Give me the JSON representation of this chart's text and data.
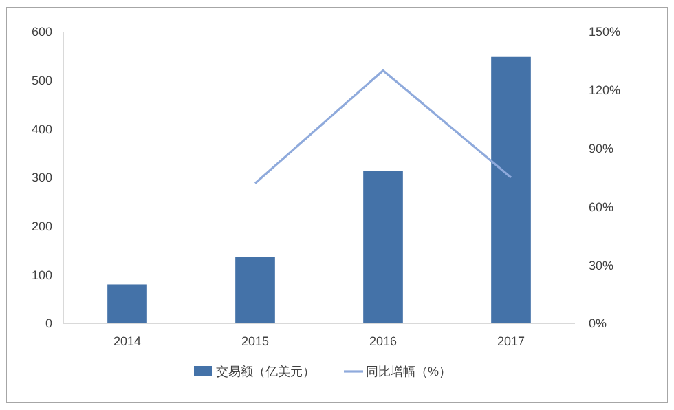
{
  "chart_data": {
    "type": "bar",
    "categories": [
      "2014",
      "2015",
      "2016",
      "2017"
    ],
    "series": [
      {
        "name": "交易额（亿美元）",
        "color": "#4472a8",
        "values": [
          80,
          136,
          314,
          548
        ]
      },
      {
        "name": "同比增幅（%）",
        "type": "line",
        "axis": "y2",
        "color": "#8faadc",
        "values": [
          null,
          72,
          130,
          75
        ]
      }
    ],
    "ylim": [
      0,
      600
    ],
    "yticks": [
      0,
      100,
      200,
      300,
      400,
      500,
      600
    ],
    "y2lim": [
      0,
      150
    ],
    "y2ticks": [
      {
        "value": 0,
        "label": "0%"
      },
      {
        "value": 30,
        "label": "30%"
      },
      {
        "value": 60,
        "label": "60%"
      },
      {
        "value": 90,
        "label": "90%"
      },
      {
        "value": 120,
        "label": "120%"
      },
      {
        "value": 150,
        "label": "150%"
      }
    ],
    "legend": "bottom",
    "marker": "none"
  }
}
